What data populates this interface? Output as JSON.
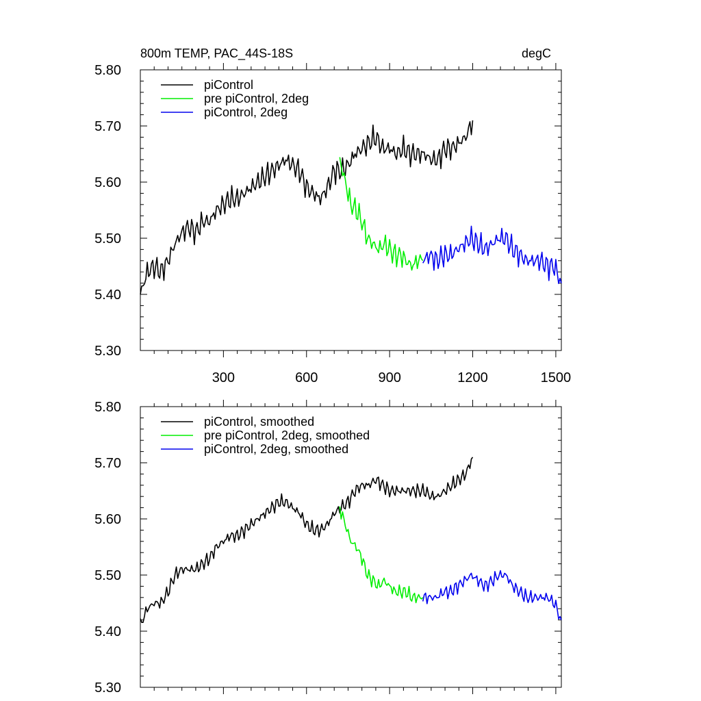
{
  "header": {
    "left": "800m TEMP, PAC_44S-18S",
    "right": "degC"
  },
  "colors": {
    "piControl": "#000000",
    "pre": "#00ee00",
    "twodeg": "#0000ee"
  },
  "chart_data": [
    {
      "type": "line",
      "panel": "raw",
      "xlim": [
        0,
        1520
      ],
      "ylim": [
        5.3,
        5.8
      ],
      "xticks": [
        "300",
        "600",
        "900",
        "1200",
        "1500"
      ],
      "yticks": [
        "5.30",
        "5.40",
        "5.50",
        "5.60",
        "5.70",
        "5.80"
      ],
      "grid": false,
      "legend_position": "top-left",
      "series": [
        {
          "name": "piControl",
          "color": "#000000",
          "x": [
            0,
            25,
            50,
            75,
            100,
            125,
            150,
            175,
            200,
            225,
            250,
            275,
            300,
            325,
            350,
            375,
            400,
            425,
            450,
            475,
            500,
            525,
            550,
            575,
            600,
            625,
            650,
            675,
            700,
            725,
            750,
            775,
            800,
            825,
            850,
            875,
            900,
            925,
            950,
            975,
            1000,
            1025,
            1050,
            1075,
            1100,
            1125,
            1150,
            1175,
            1200
          ],
          "y": [
            5.4,
            5.44,
            5.45,
            5.44,
            5.46,
            5.49,
            5.51,
            5.52,
            5.51,
            5.53,
            5.53,
            5.55,
            5.56,
            5.57,
            5.57,
            5.58,
            5.59,
            5.6,
            5.61,
            5.62,
            5.63,
            5.64,
            5.63,
            5.62,
            5.59,
            5.58,
            5.57,
            5.59,
            5.62,
            5.62,
            5.63,
            5.65,
            5.66,
            5.67,
            5.68,
            5.66,
            5.66,
            5.65,
            5.66,
            5.65,
            5.65,
            5.65,
            5.64,
            5.64,
            5.66,
            5.66,
            5.67,
            5.68,
            5.71
          ]
        },
        {
          "name": "pre piControl, 2deg",
          "color": "#00ee00",
          "x": [
            720,
            740,
            760,
            780,
            800,
            820,
            840,
            860,
            880,
            900,
            920,
            940,
            960,
            980,
            1000,
            1020
          ],
          "y": [
            5.64,
            5.6,
            5.56,
            5.55,
            5.53,
            5.5,
            5.49,
            5.48,
            5.49,
            5.48,
            5.47,
            5.47,
            5.46,
            5.45,
            5.46,
            5.46
          ]
        },
        {
          "name": "piControl, 2deg",
          "color": "#0000ee",
          "x": [
            1020,
            1045,
            1070,
            1095,
            1120,
            1145,
            1170,
            1195,
            1220,
            1245,
            1270,
            1295,
            1320,
            1345,
            1370,
            1395,
            1420,
            1445,
            1470,
            1495,
            1520
          ],
          "y": [
            5.46,
            5.47,
            5.46,
            5.47,
            5.47,
            5.48,
            5.49,
            5.5,
            5.49,
            5.48,
            5.49,
            5.5,
            5.5,
            5.48,
            5.47,
            5.46,
            5.46,
            5.46,
            5.45,
            5.45,
            5.42
          ]
        }
      ]
    },
    {
      "type": "line",
      "panel": "smoothed",
      "xlim": [
        0,
        1520
      ],
      "ylim": [
        5.3,
        5.8
      ],
      "yticks": [
        "5.30",
        "5.40",
        "5.50",
        "5.60",
        "5.70",
        "5.80"
      ],
      "grid": false,
      "legend_position": "top-left",
      "series": [
        {
          "name": "piControl, smoothed",
          "color": "#000000",
          "x": [
            0,
            25,
            50,
            75,
            100,
            125,
            150,
            175,
            200,
            225,
            250,
            275,
            300,
            325,
            350,
            375,
            400,
            425,
            450,
            475,
            500,
            525,
            550,
            575,
            600,
            625,
            650,
            675,
            700,
            725,
            750,
            775,
            800,
            825,
            850,
            875,
            900,
            925,
            950,
            975,
            1000,
            1025,
            1050,
            1075,
            1100,
            1125,
            1150,
            1175,
            1200
          ],
          "y": [
            5.41,
            5.44,
            5.45,
            5.45,
            5.47,
            5.5,
            5.51,
            5.51,
            5.51,
            5.52,
            5.53,
            5.55,
            5.56,
            5.57,
            5.57,
            5.58,
            5.59,
            5.6,
            5.61,
            5.62,
            5.63,
            5.63,
            5.62,
            5.61,
            5.59,
            5.58,
            5.58,
            5.59,
            5.61,
            5.62,
            5.63,
            5.65,
            5.66,
            5.66,
            5.67,
            5.66,
            5.65,
            5.65,
            5.65,
            5.65,
            5.65,
            5.65,
            5.64,
            5.64,
            5.65,
            5.66,
            5.67,
            5.68,
            5.71
          ]
        },
        {
          "name": "pre piControl, 2deg, smoothed",
          "color": "#00ee00",
          "x": [
            720,
            740,
            760,
            780,
            800,
            820,
            840,
            860,
            880,
            900,
            920,
            940,
            960,
            980,
            1000,
            1020
          ],
          "y": [
            5.62,
            5.59,
            5.56,
            5.55,
            5.53,
            5.5,
            5.49,
            5.48,
            5.49,
            5.48,
            5.47,
            5.47,
            5.47,
            5.46,
            5.46,
            5.46
          ]
        },
        {
          "name": "piControl, 2deg, smoothed",
          "color": "#0000ee",
          "x": [
            1020,
            1045,
            1070,
            1095,
            1120,
            1145,
            1170,
            1195,
            1220,
            1245,
            1270,
            1295,
            1320,
            1345,
            1370,
            1395,
            1420,
            1445,
            1470,
            1495,
            1520
          ],
          "y": [
            5.46,
            5.46,
            5.46,
            5.47,
            5.47,
            5.48,
            5.49,
            5.5,
            5.49,
            5.48,
            5.49,
            5.5,
            5.5,
            5.48,
            5.47,
            5.46,
            5.46,
            5.46,
            5.46,
            5.45,
            5.42
          ]
        }
      ]
    }
  ]
}
